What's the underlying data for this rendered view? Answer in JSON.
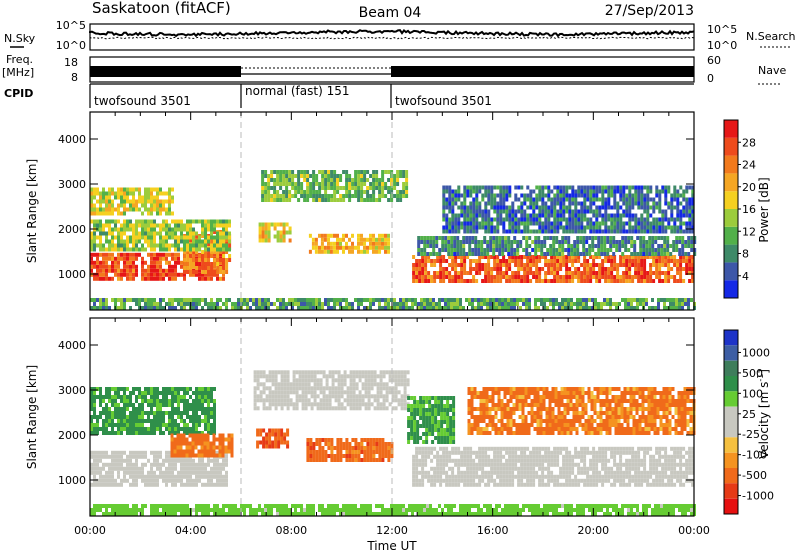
{
  "header": {
    "station": "Saskatoon (fitACF)",
    "beam": "Beam 04",
    "date": "27/Sep/2013"
  },
  "noise_panel": {
    "left_label": "N.Sky",
    "right_label": "N.Search",
    "left_ticks": [
      "10^5",
      "10^0"
    ],
    "right_ticks": [
      "10^5",
      "10^0"
    ]
  },
  "freq_panel": {
    "left_label_1": "Freq.",
    "left_label_2": "[MHz]",
    "right_label": "Nave",
    "left_ticks": [
      "18",
      "8"
    ],
    "right_ticks": [
      "60",
      "0"
    ]
  },
  "cpid_panel": {
    "label": "CPID",
    "modes": [
      {
        "name": "twofsound 3501",
        "start_hour": 0,
        "end_hour": 6
      },
      {
        "name": "normal (fast) 151",
        "start_hour": 6,
        "end_hour": 12
      },
      {
        "name": "twofsound 3501",
        "start_hour": 12,
        "end_hour": 24
      }
    ]
  },
  "power_colorbar": {
    "label": "Power [dB]",
    "ticks": [
      "4",
      "8",
      "12",
      "16",
      "20",
      "24",
      "28"
    ],
    "colors": [
      "#1428e6",
      "#3d57a8",
      "#3e8a68",
      "#52b04a",
      "#9ccc3c",
      "#f5d020",
      "#f5a623",
      "#f27a1d",
      "#ee4b1c",
      "#e61717"
    ]
  },
  "velocity_colorbar": {
    "label": "Velocity [m s",
    "label_sup": "-1",
    "label_end": "]",
    "ticks": [
      "1000",
      "500",
      "100",
      "25",
      "-25",
      "-100",
      "-500",
      "-1000"
    ],
    "colors": [
      "#1d33c8",
      "#3d5ea4",
      "#3e7d5b",
      "#2f8f4a",
      "#66cc33",
      "#c8c8c0",
      "#c8c8c0",
      "#f5c040",
      "#f59320",
      "#f06a1a",
      "#e63a16",
      "#e61010"
    ]
  },
  "chart_data": [
    {
      "type": "heatmap",
      "quantity": "power",
      "title": "",
      "xlabel": "",
      "ylabel": "Slant Range [km]",
      "xlim": [
        0,
        24
      ],
      "ylim": [
        200,
        4600
      ],
      "yticks": [
        "1000",
        "2000",
        "3000",
        "4000"
      ],
      "regions": [
        {
          "t0": 0.0,
          "t1": 5.3,
          "r0": 850,
          "r1": 1400,
          "level": 27
        },
        {
          "t0": 3.7,
          "t1": 5.6,
          "r0": 1000,
          "r1": 1900,
          "level": 24
        },
        {
          "t0": 0.0,
          "t1": 5.5,
          "r0": 1500,
          "r1": 2200,
          "level": 14
        },
        {
          "t0": 0.0,
          "t1": 3.3,
          "r0": 2300,
          "r1": 2900,
          "level": 16
        },
        {
          "t0": 6.7,
          "t1": 7.9,
          "r0": 1700,
          "r1": 2100,
          "level": 18
        },
        {
          "t0": 8.7,
          "t1": 11.9,
          "r0": 1450,
          "r1": 1850,
          "level": 20
        },
        {
          "t0": 6.8,
          "t1": 12.6,
          "r0": 2600,
          "r1": 3300,
          "level": 12
        },
        {
          "t0": 12.8,
          "t1": 24.0,
          "r0": 800,
          "r1": 1400,
          "level": 26
        },
        {
          "t0": 13.0,
          "t1": 24.0,
          "r0": 1400,
          "r1": 1800,
          "level": 8
        },
        {
          "t0": 14.0,
          "t1": 24.0,
          "r0": 1900,
          "r1": 2900,
          "level": 6
        },
        {
          "t0": 0.0,
          "t1": 24.0,
          "r0": 200,
          "r1": 420,
          "level": 10
        }
      ]
    },
    {
      "type": "heatmap",
      "quantity": "velocity",
      "title": "",
      "xlabel": "Time UT",
      "ylabel": "Slant Range [km]",
      "xlim": [
        0,
        24
      ],
      "ylim": [
        200,
        4600
      ],
      "yticks": [
        "1000",
        "2000",
        "3000",
        "4000"
      ],
      "xticks": [
        "00:00",
        "04:00",
        "08:00",
        "12:00",
        "16:00",
        "20:00",
        "00:00"
      ],
      "regions": [
        {
          "t0": 0.0,
          "t1": 5.4,
          "r0": 850,
          "r1": 1600,
          "level": 0
        },
        {
          "t0": 0.0,
          "t1": 5.0,
          "r0": 2000,
          "r1": 3000,
          "level": 150
        },
        {
          "t0": 3.2,
          "t1": 5.6,
          "r0": 1500,
          "r1": 2000,
          "level": -150
        },
        {
          "t0": 6.6,
          "t1": 7.9,
          "r0": 1700,
          "r1": 2100,
          "level": -300
        },
        {
          "t0": 8.6,
          "t1": 12.0,
          "r0": 1400,
          "r1": 1900,
          "level": -200
        },
        {
          "t0": 6.5,
          "t1": 12.6,
          "r0": 2550,
          "r1": 3350,
          "level": 0
        },
        {
          "t0": 12.8,
          "t1": 24.0,
          "r0": 850,
          "r1": 1700,
          "level": 0
        },
        {
          "t0": 12.6,
          "t1": 14.4,
          "r0": 1800,
          "r1": 2800,
          "level": 120
        },
        {
          "t0": 15.0,
          "t1": 24.0,
          "r0": 2000,
          "r1": 3000,
          "level": -120
        },
        {
          "t0": 0.0,
          "t1": 24.0,
          "r0": 200,
          "r1": 400,
          "level": 60
        }
      ]
    }
  ]
}
